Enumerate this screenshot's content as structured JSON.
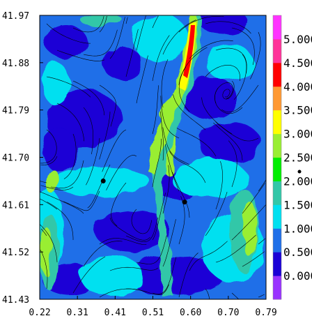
{
  "chart_data": {
    "type": "heatmap",
    "title": "",
    "xlabel": "",
    "ylabel": "",
    "xlim": [
      0.22,
      0.79
    ],
    "ylim": [
      41.43,
      41.97
    ],
    "x_ticks": [
      "0.22",
      "0.31",
      "0.41",
      "0.51",
      "0.60",
      "0.70",
      "0.79"
    ],
    "y_ticks": [
      "41.97",
      "41.88",
      "41.79",
      "41.70",
      "41.61",
      "41.52",
      "41.43"
    ],
    "overlay": "streamlines",
    "colorbar": {
      "levels": [
        "0.000",
        "0.500",
        "1.000",
        "1.500",
        "2.000",
        "2.500",
        "3.000",
        "3.500",
        "4.000",
        "4.500",
        "5.000"
      ],
      "colors": [
        "#9933ff",
        "#1a00d6",
        "#1f6fe8",
        "#00e0f0",
        "#33c7a8",
        "#00ee00",
        "#99ee33",
        "#ffff00",
        "#ff9933",
        "#ff0000",
        "#ff3399",
        "#ff33ff"
      ]
    },
    "field_colors": {
      "background": "#1f6fe8",
      "low": "#1a00d6",
      "medium": "#00e0f0",
      "medium_high": "#33c7a8",
      "high": "#99ee33",
      "very_high": "#ffff00",
      "peak": "#ff0000"
    },
    "markers": [
      {
        "x": 0.38,
        "y": 41.655
      },
      {
        "x": 0.585,
        "y": 41.615
      }
    ]
  }
}
